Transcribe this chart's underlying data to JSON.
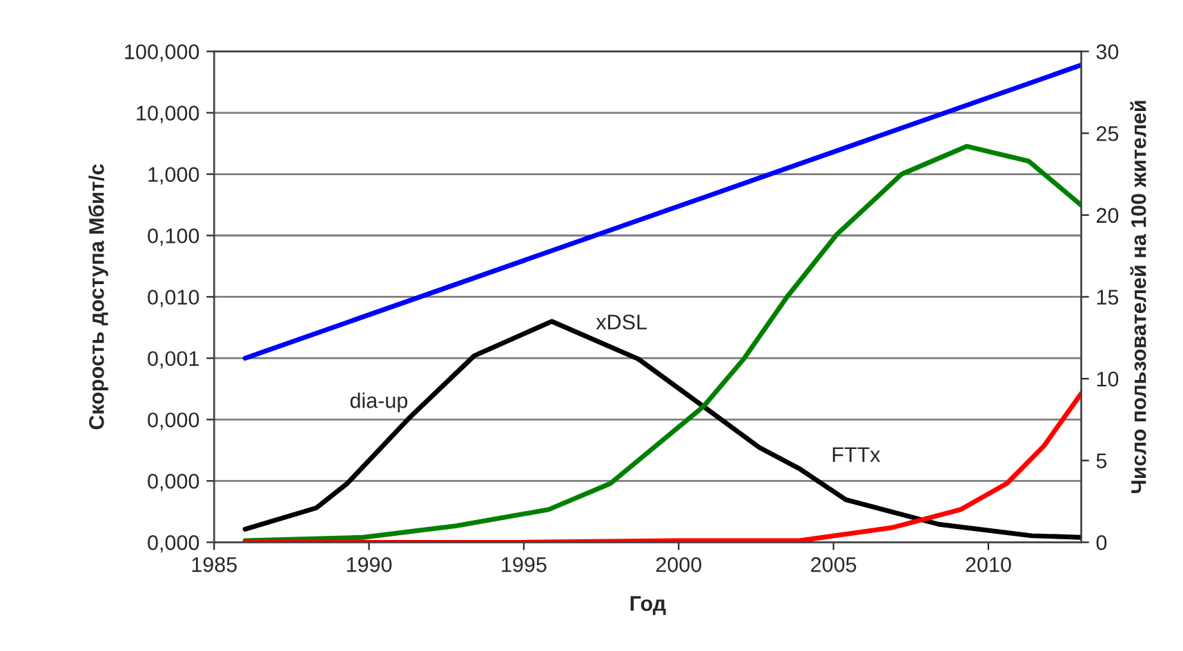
{
  "chart_data": {
    "type": "line",
    "xlabel": "Год",
    "ylabel": "Скорость доступа Мбит/с",
    "y2label": "Число пользователей на 100 жителей",
    "xlim": [
      1985,
      2013
    ],
    "xticks": [
      1985,
      1990,
      1995,
      2000,
      2005,
      2010
    ],
    "ylim": [
      1e-06,
      100
    ],
    "log": "y",
    "yticks": [
      {
        "value": 100,
        "label": "100,000"
      },
      {
        "value": 10,
        "label": "10,000"
      },
      {
        "value": 1,
        "label": "1,000"
      },
      {
        "value": 0.1,
        "label": "0,100"
      },
      {
        "value": 0.01,
        "label": "0,010"
      },
      {
        "value": 0.001,
        "label": "0,001"
      },
      {
        "value": 0.0001,
        "label": "0,000"
      },
      {
        "value": 1e-05,
        "label": "0,000"
      },
      {
        "value": 1e-06,
        "label": "0,000"
      }
    ],
    "y2lim": [
      0,
      30
    ],
    "y2ticks": [
      0,
      5,
      10,
      15,
      20,
      25,
      30
    ],
    "grid": "y",
    "marker": "none",
    "line_style": "solid",
    "series": [
      {
        "color": "#0000ff",
        "axis": "y",
        "x": [
          1986,
          2000,
          2013
        ],
        "values": [
          0.001,
          0.3,
          60
        ]
      },
      {
        "color": "#000000",
        "axis": "y2",
        "x": [
          1986,
          1988.3,
          1989.3,
          1991.3,
          1993.4,
          1995.9,
          1998.7,
          2000.8,
          2002.6,
          2003.9,
          2005.4,
          2008.4,
          2011.4,
          2013
        ],
        "values": [
          0.8,
          2.1,
          3.6,
          7.6,
          11.4,
          13.5,
          11.2,
          8.3,
          5.8,
          4.5,
          2.6,
          1.1,
          0.4,
          0.3
        ]
      },
      {
        "color": "#008000",
        "axis": "y2",
        "x": [
          1986,
          1989.8,
          1992.8,
          1995.8,
          1997.8,
          2000.8,
          2002.1,
          2003.5,
          2005.1,
          2007.2,
          2009.3,
          2011.3,
          2013
        ],
        "values": [
          0.1,
          0.3,
          1.0,
          2.0,
          3.6,
          8.3,
          11.2,
          15.0,
          18.8,
          22.5,
          24.2,
          23.3,
          20.6
        ]
      },
      {
        "color": "#ff0000",
        "axis": "y2",
        "x": [
          1986,
          1995,
          2000,
          2003.9,
          2006.9,
          2009.1,
          2010.6,
          2011.8,
          2013
        ],
        "values": [
          0,
          0,
          0.1,
          0.1,
          0.9,
          2.0,
          3.6,
          5.9,
          9.1
        ]
      }
    ],
    "annotations": [
      "dia-up",
      "xDSL",
      "FTTx"
    ]
  }
}
